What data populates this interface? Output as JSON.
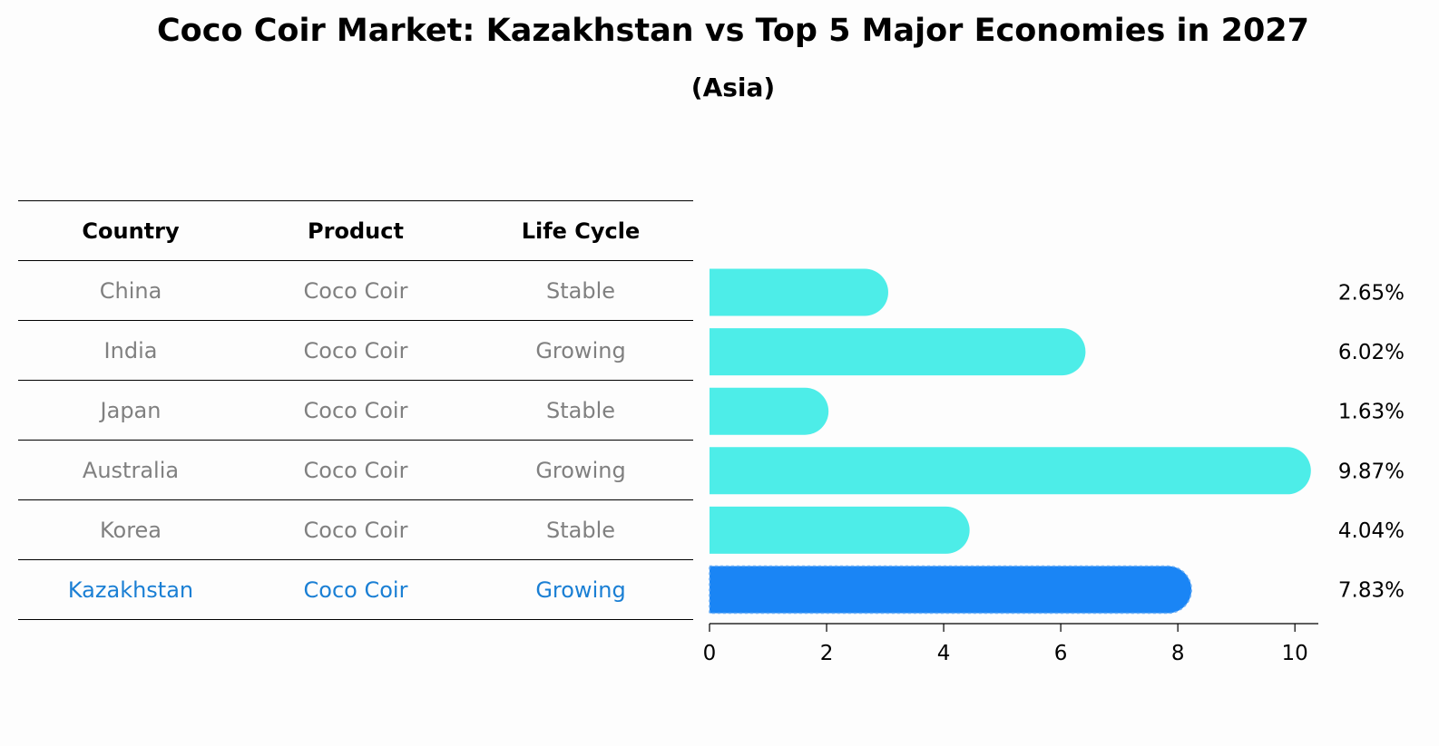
{
  "title": "Coco Coir Market: Kazakhstan vs Top 5 Major Economies in 2027",
  "subtitle": "(Asia)",
  "table": {
    "headers": [
      "Country",
      "Product",
      "Life Cycle"
    ],
    "rows": [
      [
        "China",
        "Coco Coir",
        "Stable"
      ],
      [
        "India",
        "Coco Coir",
        "Growing"
      ],
      [
        "Japan",
        "Coco Coir",
        "Stable"
      ],
      [
        "Australia",
        "Coco Coir",
        "Growing"
      ],
      [
        "Korea",
        "Coco Coir",
        "Stable"
      ],
      [
        "Kazakhstan",
        "Coco Coir",
        "Growing"
      ]
    ],
    "highlight_row": 5
  },
  "chart_data": {
    "type": "bar",
    "orientation": "horizontal",
    "categories": [
      "China",
      "India",
      "Japan",
      "Australia",
      "Korea",
      "Kazakhstan"
    ],
    "values": [
      2.65,
      6.02,
      1.63,
      9.87,
      4.04,
      7.83
    ],
    "value_labels": [
      "2.65%",
      "6.02%",
      "1.63%",
      "9.87%",
      "4.04%",
      "7.83%"
    ],
    "xlim": [
      0,
      10.4
    ],
    "xticks": [
      0,
      2,
      4,
      6,
      8,
      10
    ],
    "grid": false,
    "colors": {
      "default": "#4dede8",
      "highlight": "#1a85f5"
    },
    "highlight_index": 5
  },
  "colors": {
    "muted_text": "#808080",
    "highlight_text": "#1a7fd4"
  }
}
